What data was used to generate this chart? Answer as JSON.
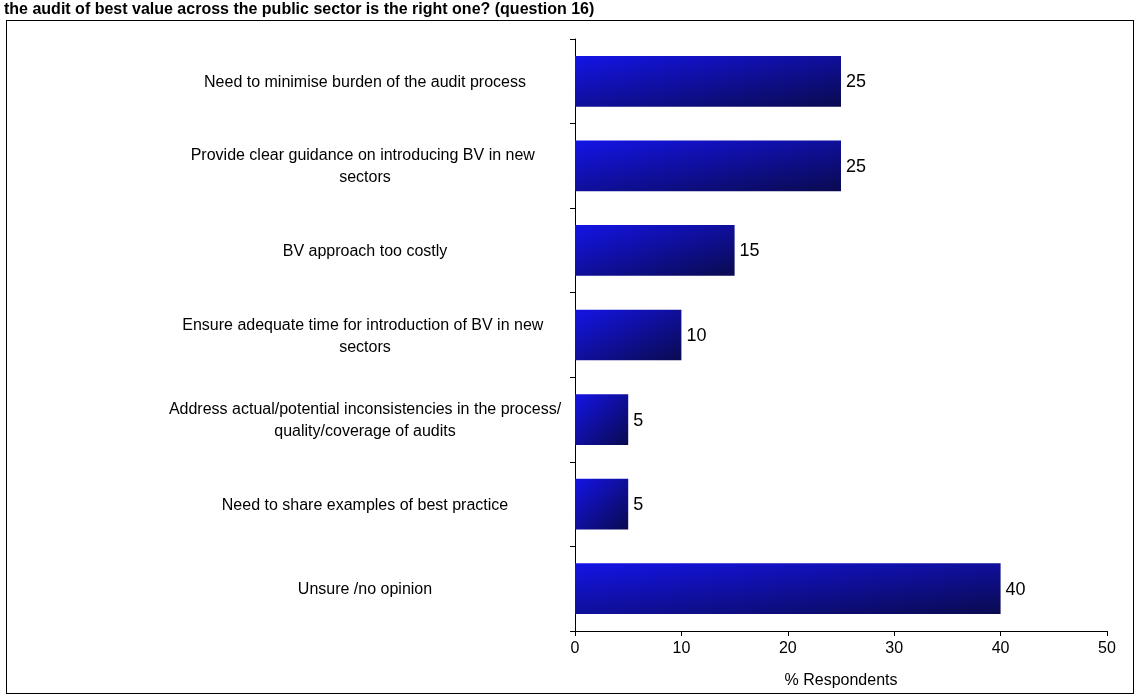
{
  "chart_data": {
    "type": "bar",
    "orientation": "horizontal",
    "title": "the audit of best value across the public sector is the right one? (question 16)",
    "xlabel": "% Respondents",
    "categories": [
      "Need to minimise burden of the audit process",
      "Provide clear guidance on introducing BV in new sectors",
      "BV approach too costly",
      "Ensure adequate time for introduction of BV in new sectors",
      "Address actual/potential inconsistencies in the process/quality/coverage of audits",
      "Need to share examples of best practice",
      "Unsure /no opinion"
    ],
    "values": [
      25,
      25,
      15,
      10,
      5,
      5,
      40
    ],
    "color": "#1414e6",
    "xlim": [
      0,
      50
    ],
    "xticks": [
      0,
      10,
      20,
      30,
      40,
      50
    ],
    "grid": false,
    "data_labels": true
  }
}
